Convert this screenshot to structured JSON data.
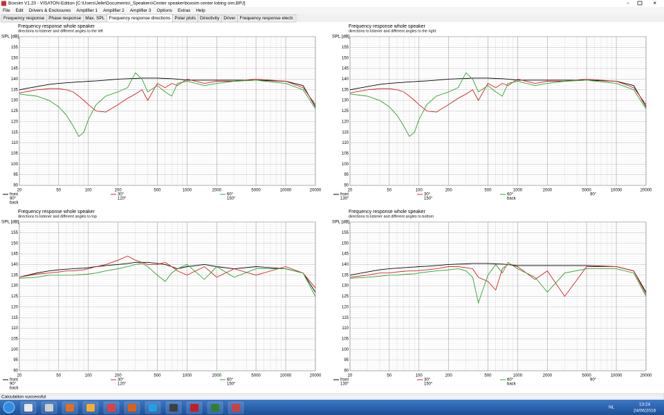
{
  "window": {
    "title": "Boxsim V1.20 - VISATON-Edition [C:\\Users\\Jelle\\Documents\\_Speakers\\Center speaker\\boxsim center lobing sim.BPJ]"
  },
  "menu": [
    "File",
    "Edit",
    "Drivers & Enclosures",
    "Amplifier 1",
    "Amplifier 2",
    "Amplifier 3",
    "Options",
    "Extras",
    "Help"
  ],
  "tabs": [
    "Frequency response",
    "Phase response",
    "Max. SPL",
    "Frequency response directions",
    "Polar plots",
    "Directivity",
    "Driver",
    "Frequency response electr."
  ],
  "active_tab": 3,
  "chart_data": [
    {
      "type": "line",
      "title": "Frequency response whole speaker",
      "subtitle": "directions to listener and different angles to the left",
      "ylabel": "SPL [dB]",
      "x": [
        20,
        30,
        40,
        50,
        60,
        70,
        80,
        90,
        100,
        120,
        150,
        200,
        250,
        300,
        350,
        400,
        500,
        600,
        700,
        800,
        1000,
        1500,
        2000,
        3000,
        5000,
        10000,
        15000,
        20000
      ],
      "series": [
        {
          "name": "front",
          "color": "#000000",
          "values": [
            135,
            136.5,
            137.5,
            138,
            138.3,
            138.5,
            138.7,
            138.8,
            139,
            139.2,
            139.5,
            140,
            140.2,
            140.3,
            140.5,
            140.5,
            140.5,
            140.3,
            140.2,
            140,
            139.5,
            139.5,
            139.5,
            139.5,
            139.5,
            139,
            137,
            127
          ]
        },
        {
          "name": "30°",
          "color": "#d42020",
          "values": [
            133.5,
            135,
            135.5,
            135.5,
            135,
            134,
            132,
            130,
            128,
            125,
            124.5,
            128,
            131,
            133,
            135,
            130,
            138,
            136,
            138,
            137,
            140,
            138,
            139,
            139,
            140,
            139,
            136,
            128
          ]
        },
        {
          "name": "60°",
          "color": "#2ca02c",
          "values": [
            133,
            132,
            130,
            127,
            123,
            118,
            113,
            115,
            121,
            128,
            132,
            134,
            136,
            143,
            140,
            134,
            137,
            134,
            132,
            138,
            139,
            137,
            138,
            139,
            139.5,
            138,
            135,
            126
          ]
        }
      ],
      "legend_other": [
        {
          "name": "90°",
          "color": "#ffffff"
        },
        {
          "name": "back",
          "color": "#ffffff"
        },
        {
          "name": "120°",
          "color": "#ffffff"
        },
        {
          "name": "150°",
          "color": "#ffffff"
        }
      ],
      "xscale": "log",
      "xlim": [
        20,
        20000
      ],
      "xticks": [
        20,
        50,
        100,
        200,
        500,
        1000,
        2000,
        5000,
        10000,
        20000
      ],
      "ylim": [
        90,
        160
      ],
      "yticks": [
        90,
        95,
        100,
        105,
        110,
        115,
        120,
        125,
        130,
        135,
        140,
        145,
        150,
        155
      ],
      "grid": true
    },
    {
      "type": "line",
      "title": "Frequency response whole speaker",
      "subtitle": "directions to listener and different angles to the right",
      "ylabel": "SPL [dB]",
      "x": [
        20,
        30,
        40,
        50,
        60,
        70,
        80,
        90,
        100,
        120,
        150,
        200,
        250,
        300,
        350,
        400,
        500,
        600,
        700,
        800,
        1000,
        1500,
        2000,
        3000,
        5000,
        10000,
        15000,
        20000
      ],
      "series": [
        {
          "name": "front",
          "color": "#000000",
          "values": [
            135,
            136.5,
            137.5,
            138,
            138.3,
            138.5,
            138.7,
            138.8,
            139,
            139.2,
            139.5,
            140,
            140.2,
            140.3,
            140.5,
            140.5,
            140.5,
            140.3,
            140.2,
            140,
            139.5,
            139.5,
            139.5,
            139.5,
            139.5,
            139,
            137,
            127
          ]
        },
        {
          "name": "30°",
          "color": "#d42020",
          "values": [
            133.5,
            135,
            135.5,
            135.5,
            135,
            134,
            132,
            130,
            128,
            125,
            124.5,
            128,
            131,
            133,
            135,
            130,
            138,
            136,
            138,
            137,
            140,
            138,
            139,
            139,
            140,
            139,
            136,
            128
          ]
        },
        {
          "name": "60°",
          "color": "#2ca02c",
          "values": [
            133,
            132,
            130,
            127,
            123,
            118,
            113,
            115,
            121,
            128,
            132,
            134,
            136,
            143,
            140,
            134,
            137,
            134,
            132,
            138,
            139,
            137,
            138,
            139,
            139.5,
            138,
            135,
            126
          ]
        }
      ],
      "legend_other": [
        {
          "name": "130°",
          "color": "#ffffff"
        },
        {
          "name": "150°",
          "color": "#ffffff"
        },
        {
          "name": "back",
          "color": "#ffffff"
        },
        {
          "name": "90°",
          "color": "#ffffff"
        }
      ],
      "xscale": "log",
      "xlim": [
        20,
        20000
      ],
      "xticks": [
        20,
        50,
        100,
        200,
        500,
        1000,
        2000,
        5000,
        10000,
        20000
      ],
      "ylim": [
        90,
        160
      ],
      "yticks": [
        90,
        95,
        100,
        105,
        110,
        115,
        120,
        125,
        130,
        135,
        140,
        145,
        150,
        155
      ],
      "grid": true
    },
    {
      "type": "line",
      "title": "Frequency response whole speaker",
      "subtitle": "directions to listener and different angles to top",
      "ylabel": "SPL [dB]",
      "x": [
        20,
        30,
        40,
        50,
        60,
        70,
        80,
        90,
        100,
        120,
        150,
        200,
        250,
        300,
        350,
        400,
        500,
        600,
        700,
        800,
        1000,
        1500,
        2000,
        3000,
        5000,
        10000,
        15000,
        20000
      ],
      "series": [
        {
          "name": "front",
          "color": "#000000",
          "values": [
            134,
            136,
            137,
            137.5,
            137.8,
            138,
            138.2,
            138.3,
            138.5,
            139,
            139.5,
            140,
            140.5,
            141,
            141,
            141,
            140.5,
            140,
            139,
            138,
            139,
            140,
            139,
            138,
            139,
            138,
            136,
            127
          ]
        },
        {
          "name": "30°",
          "color": "#d42020",
          "values": [
            134,
            135.5,
            136,
            136.5,
            137,
            137,
            137.3,
            137.5,
            138,
            139,
            140,
            142,
            144,
            142,
            141,
            140,
            140,
            141,
            139,
            137,
            135,
            139,
            134,
            138,
            135,
            139,
            136,
            129
          ]
        },
        {
          "name": "60°",
          "color": "#2ca02c",
          "values": [
            133.5,
            134,
            135,
            135,
            135,
            135,
            135.2,
            135.3,
            135.5,
            136,
            137,
            138,
            139,
            140,
            140.5,
            139,
            135,
            132,
            136,
            138,
            140,
            133,
            139,
            134,
            138,
            138,
            136,
            125
          ]
        }
      ],
      "legend_other": [
        {
          "name": "90°",
          "color": "#ffffff"
        },
        {
          "name": "back",
          "color": "#ffffff"
        },
        {
          "name": "120°",
          "color": "#ffffff"
        },
        {
          "name": "150°",
          "color": "#ffffff"
        }
      ],
      "xscale": "log",
      "xlim": [
        20,
        20000
      ],
      "xticks": [
        20,
        50,
        100,
        200,
        500,
        1000,
        2000,
        5000,
        10000,
        20000
      ],
      "ylim": [
        90,
        160
      ],
      "yticks": [
        90,
        95,
        100,
        105,
        110,
        115,
        120,
        125,
        130,
        135,
        140,
        145,
        150,
        155
      ],
      "grid": true
    },
    {
      "type": "line",
      "title": "Frequency response whole speaker",
      "subtitle": "directions to listener and different angles to bottom",
      "ylabel": "SPL [dB]",
      "x": [
        20,
        30,
        40,
        50,
        60,
        70,
        80,
        90,
        100,
        120,
        150,
        200,
        250,
        300,
        350,
        400,
        500,
        600,
        700,
        800,
        1000,
        1500,
        2000,
        3000,
        5000,
        10000,
        15000,
        20000
      ],
      "series": [
        {
          "name": "front",
          "color": "#000000",
          "values": [
            135,
            136.5,
            137.5,
            138,
            138.3,
            138.5,
            138.7,
            138.8,
            139,
            139.2,
            139.5,
            140,
            140.2,
            140.3,
            140.5,
            140.5,
            140.5,
            140.3,
            140.2,
            140,
            139.5,
            139.5,
            139.5,
            139.5,
            139.5,
            139,
            137,
            127
          ]
        },
        {
          "name": "30°",
          "color": "#d42020",
          "values": [
            134,
            135,
            136,
            136,
            136.5,
            136.8,
            137,
            137,
            137.2,
            137.5,
            138,
            139,
            139,
            138.5,
            138,
            134,
            132,
            128,
            138,
            140,
            139,
            133,
            137,
            125,
            139,
            139,
            137,
            126
          ]
        },
        {
          "name": "60°",
          "color": "#2ca02c",
          "values": [
            133.5,
            134,
            134.5,
            135,
            135,
            135.3,
            135.5,
            135.6,
            136,
            136.5,
            137,
            137.5,
            138,
            137,
            134,
            122,
            135,
            140,
            136,
            141,
            138,
            134,
            127,
            136,
            138,
            138,
            136,
            125
          ]
        }
      ],
      "legend_other": [
        {
          "name": "130°",
          "color": "#ffffff"
        },
        {
          "name": "150°",
          "color": "#ffffff"
        },
        {
          "name": "back",
          "color": "#ffffff"
        },
        {
          "name": "90°",
          "color": "#ffffff"
        }
      ],
      "xscale": "log",
      "xlim": [
        20,
        20000
      ],
      "xticks": [
        20,
        50,
        100,
        200,
        500,
        1000,
        2000,
        5000,
        10000,
        20000
      ],
      "ylim": [
        90,
        160
      ],
      "yticks": [
        90,
        95,
        100,
        105,
        110,
        115,
        120,
        125,
        130,
        135,
        140,
        145,
        150,
        155
      ],
      "grid": true
    }
  ],
  "status": "Calculation successful",
  "taskbar": {
    "language": "NL",
    "time": "13:24",
    "date": "24/06/2016"
  }
}
